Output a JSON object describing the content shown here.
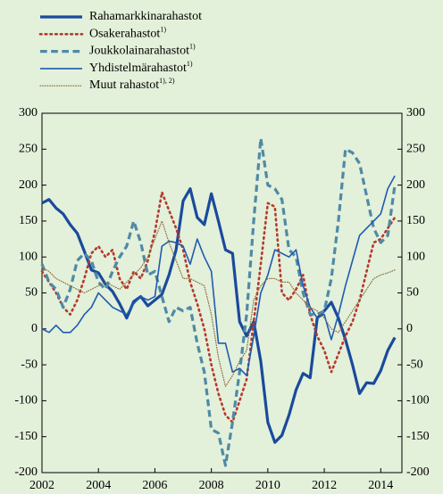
{
  "chart_data": {
    "type": "line",
    "x": [
      2002,
      2002.25,
      2002.5,
      2002.75,
      2003,
      2003.25,
      2003.5,
      2003.75,
      2004,
      2004.25,
      2004.5,
      2004.75,
      2005,
      2005.25,
      2005.5,
      2005.75,
      2006,
      2006.25,
      2006.5,
      2006.75,
      2007,
      2007.25,
      2007.5,
      2007.75,
      2008,
      2008.25,
      2008.5,
      2008.75,
      2009,
      2009.25,
      2009.5,
      2009.75,
      2010,
      2010.25,
      2010.5,
      2010.75,
      2011,
      2011.25,
      2011.5,
      2011.75,
      2012,
      2012.25,
      2012.5,
      2012.75,
      2013,
      2013.25,
      2013.5,
      2013.75,
      2014,
      2014.25,
      2014.5
    ],
    "series": [
      {
        "name": "Rahamarkkinarahastot",
        "color": "#1a4a9c",
        "style": "solid",
        "width": 3.2,
        "values": [
          175,
          180,
          168,
          160,
          145,
          133,
          108,
          82,
          78,
          62,
          52,
          35,
          15,
          38,
          45,
          32,
          40,
          48,
          75,
          110,
          178,
          195,
          155,
          145,
          188,
          150,
          110,
          105,
          10,
          -10,
          10,
          -45,
          -130,
          -158,
          -148,
          -120,
          -85,
          -62,
          -68,
          15,
          25,
          37,
          15,
          -15,
          -50,
          -90,
          -75,
          -76,
          -58,
          -30,
          -12
        ]
      },
      {
        "name": "Osakerahastot",
        "footnote": "1)",
        "color": "#b5392c",
        "style": "dotted",
        "width": 2.6,
        "values": [
          80,
          65,
          50,
          30,
          20,
          40,
          70,
          105,
          115,
          100,
          110,
          70,
          55,
          80,
          70,
          95,
          135,
          190,
          165,
          140,
          110,
          65,
          35,
          0,
          -50,
          -90,
          -120,
          -130,
          -100,
          -70,
          10,
          90,
          175,
          170,
          50,
          40,
          55,
          75,
          20,
          -10,
          -30,
          -60,
          -35,
          -10,
          10,
          40,
          80,
          120,
          125,
          140,
          155
        ]
      },
      {
        "name": "Joukkolainarahastot",
        "footnote": "1)",
        "color": "#4f8aa6",
        "style": "dashed",
        "width": 3.2,
        "values": [
          90,
          65,
          55,
          30,
          55,
          95,
          105,
          95,
          65,
          55,
          80,
          100,
          115,
          150,
          120,
          75,
          80,
          45,
          10,
          30,
          25,
          30,
          -20,
          -60,
          -140,
          -145,
          -190,
          -130,
          -60,
          20,
          150,
          265,
          200,
          195,
          180,
          110,
          100,
          50,
          20,
          20,
          25,
          70,
          150,
          250,
          245,
          230,
          185,
          140,
          120,
          130,
          200
        ]
      },
      {
        "name": "Yhdistelmärahastot",
        "footnote": "1)",
        "color": "#1f5bb0",
        "style": "solid",
        "width": 1.6,
        "values": [
          0,
          -5,
          5,
          -5,
          -5,
          5,
          20,
          30,
          50,
          40,
          30,
          25,
          20,
          35,
          45,
          40,
          45,
          115,
          122,
          120,
          115,
          90,
          125,
          100,
          80,
          -20,
          -20,
          -60,
          -55,
          -65,
          -10,
          50,
          75,
          110,
          105,
          100,
          110,
          60,
          30,
          15,
          20,
          -15,
          20,
          60,
          95,
          130,
          140,
          150,
          160,
          195,
          213
        ]
      },
      {
        "name": "Muut rahastot",
        "footnote": "1), 2)",
        "color": "#8c6a3c",
        "style": "dotted",
        "width": 1.2,
        "values": [
          85,
          80,
          70,
          65,
          60,
          55,
          50,
          55,
          60,
          65,
          60,
          55,
          65,
          75,
          85,
          100,
          125,
          150,
          120,
          95,
          70,
          70,
          65,
          60,
          20,
          -40,
          -80,
          -65,
          -45,
          -30,
          40,
          60,
          70,
          70,
          65,
          65,
          50,
          40,
          30,
          25,
          15,
          0,
          -5,
          10,
          25,
          40,
          55,
          70,
          75,
          78,
          82
        ]
      }
    ],
    "xlim": [
      2002,
      2014.75
    ],
    "xticks": [
      2002,
      2004,
      2006,
      2008,
      2010,
      2012,
      2014
    ],
    "ylim": [
      -200,
      300
    ],
    "yticks": [
      -200,
      -150,
      -100,
      -50,
      0,
      50,
      100,
      150,
      200,
      250,
      300
    ],
    "y2lim": [
      -200,
      300
    ],
    "y2ticks": [
      -200,
      -150,
      -100,
      -50,
      0,
      50,
      100,
      150,
      200,
      250,
      300
    ]
  }
}
